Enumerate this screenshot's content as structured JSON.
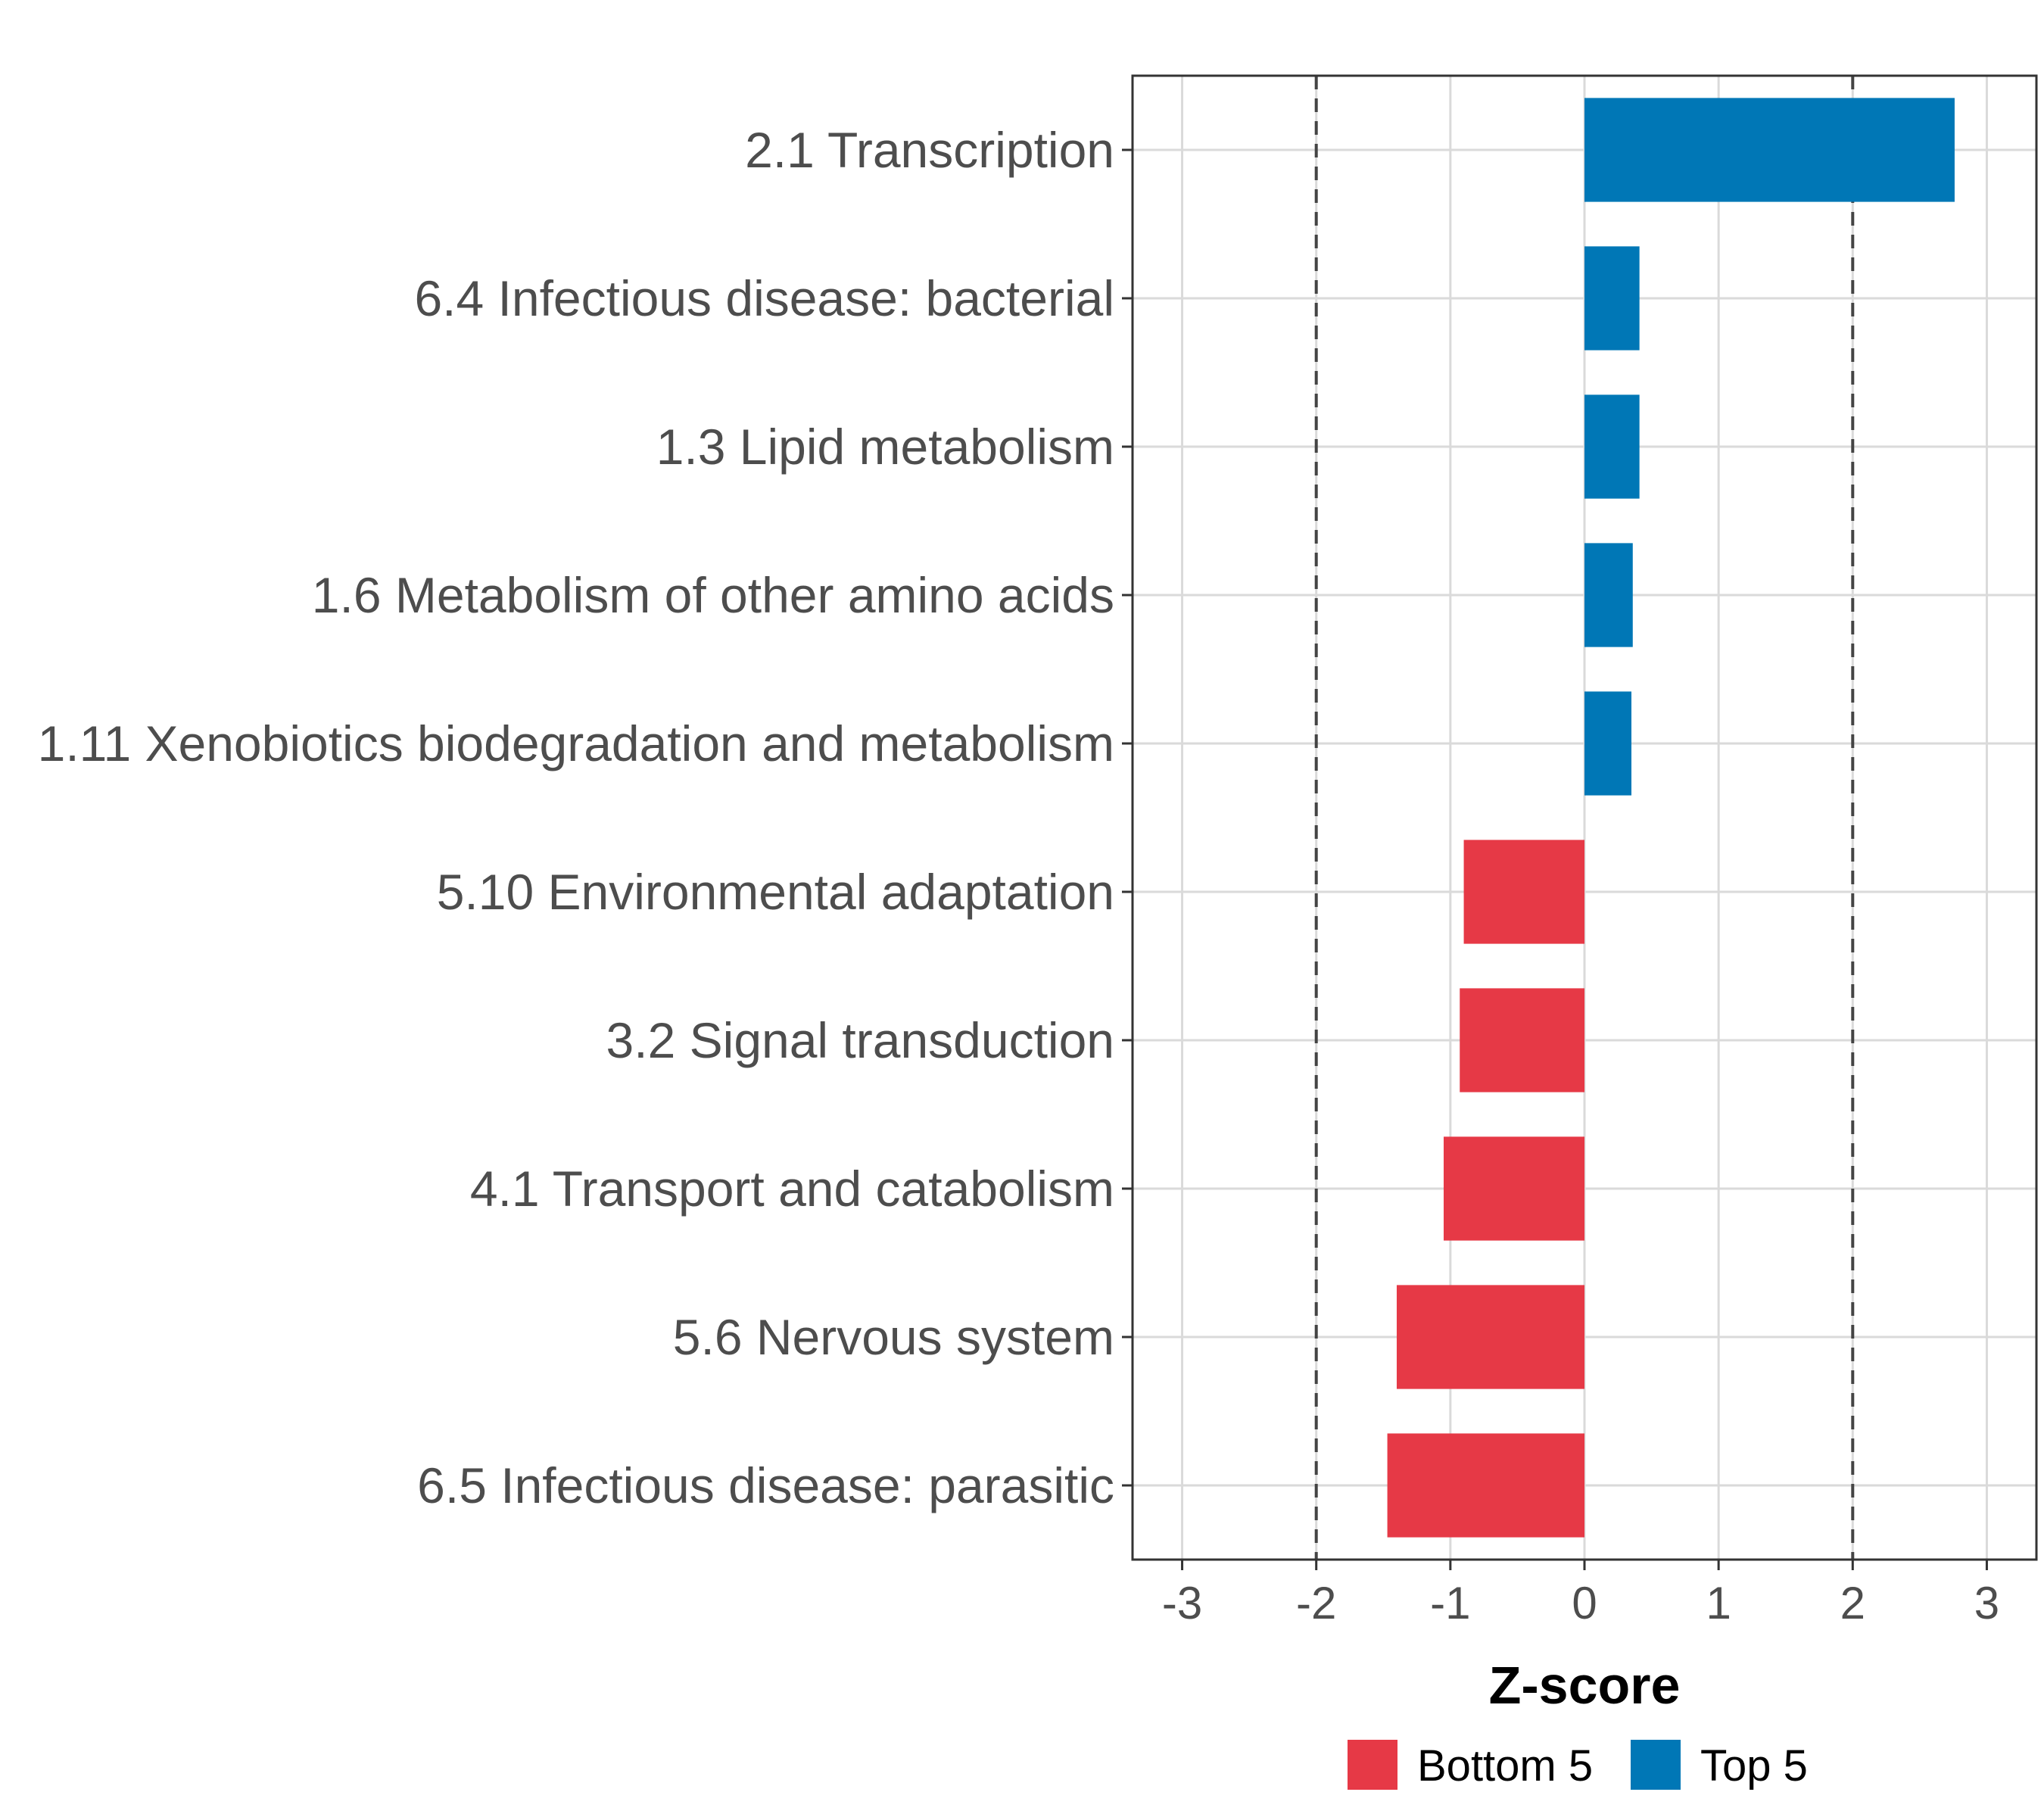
{
  "chart_data": {
    "type": "bar",
    "orientation": "horizontal",
    "title": "",
    "xlabel": "Z-score",
    "ylabel": "",
    "xlim": [
      -3.37,
      3.37
    ],
    "xticks": [
      -3,
      -2,
      -1,
      0,
      1,
      2,
      3
    ],
    "reference_lines": [
      -2,
      2
    ],
    "grid": true,
    "legend_position": "bottom",
    "categories": [
      "2.1 Transcription",
      "6.4 Infectious disease: bacterial",
      "1.3 Lipid metabolism",
      "1.6 Metabolism of other amino acids",
      "1.11 Xenobiotics biodegradation and metabolism",
      "5.10 Environmental adaptation",
      "3.2 Signal transduction",
      "4.1 Transport and catabolism",
      "5.6 Nervous system",
      "6.5 Infectious disease: parasitic"
    ],
    "values": [
      2.76,
      0.41,
      0.41,
      0.36,
      0.35,
      -0.9,
      -0.93,
      -1.05,
      -1.4,
      -1.47
    ],
    "groups": [
      "Top 5",
      "Top 5",
      "Top 5",
      "Top 5",
      "Top 5",
      "Bottom 5",
      "Bottom 5",
      "Bottom 5",
      "Bottom 5",
      "Bottom 5"
    ],
    "legend": [
      {
        "name": "Bottom 5",
        "color": "#e63946"
      },
      {
        "name": "Top 5",
        "color": "#0077b6"
      }
    ]
  }
}
